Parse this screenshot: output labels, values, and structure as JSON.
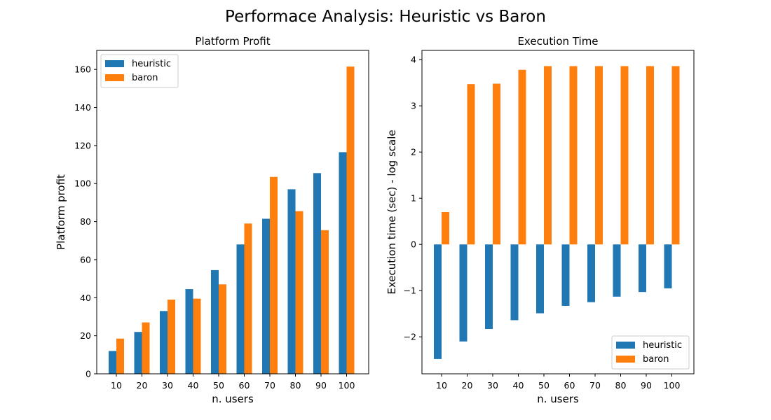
{
  "figure": {
    "suptitle": "Performace Analysis: Heuristic vs Baron"
  },
  "colors": {
    "heuristic": "#1f77b4",
    "baron": "#ff7f0e"
  },
  "chart_data": [
    {
      "type": "bar",
      "title": "Platform Profit",
      "xlabel": "n. users",
      "ylabel": "Platform profit",
      "categories": [
        "10",
        "20",
        "30",
        "40",
        "50",
        "60",
        "70",
        "80",
        "90",
        "100"
      ],
      "series": [
        {
          "name": "heuristic",
          "values": [
            12,
            22,
            33,
            44.5,
            54.5,
            68,
            81.5,
            97,
            105.5,
            116.5
          ]
        },
        {
          "name": "baron",
          "values": [
            18.5,
            27,
            39,
            39.5,
            47,
            79,
            103.5,
            85.5,
            75.5,
            161.5
          ]
        }
      ],
      "ylim": [
        0,
        170
      ],
      "yticks": [
        0,
        20,
        40,
        60,
        80,
        100,
        120,
        140,
        160
      ],
      "legend": "top-left"
    },
    {
      "type": "bar",
      "title": "Execution Time",
      "xlabel": "n. users",
      "ylabel": "Execution time (sec) - log scale",
      "categories": [
        "10",
        "20",
        "30",
        "40",
        "50",
        "60",
        "70",
        "80",
        "90",
        "100"
      ],
      "series": [
        {
          "name": "heuristic",
          "values": [
            -2.48,
            -2.1,
            -1.83,
            -1.64,
            -1.49,
            -1.33,
            -1.25,
            -1.13,
            -1.03,
            -0.95
          ]
        },
        {
          "name": "baron",
          "values": [
            0.7,
            3.47,
            3.48,
            3.78,
            3.86,
            3.86,
            3.86,
            3.86,
            3.86,
            3.86
          ]
        }
      ],
      "ylim": [
        -2.8,
        4.2
      ],
      "yticks": [
        -2,
        -1,
        0,
        1,
        2,
        3,
        4
      ],
      "ytick_labels": [
        "−2",
        "−1",
        "0",
        "1",
        "2",
        "3",
        "4"
      ],
      "baseline": 0,
      "legend": "bottom-right"
    }
  ]
}
